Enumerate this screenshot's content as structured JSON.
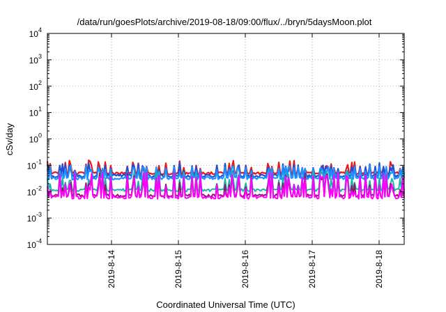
{
  "chart_data": {
    "type": "line",
    "title": "/data/run/goesPlots/archive/2019-08-18/09:00/flux/../bryn/5daysMoon.plot",
    "xlabel": "Coordinated Universal Time (UTC)",
    "ylabel": "cSv/day",
    "y_scale": "log",
    "ylim": [
      0.0001,
      10000
    ],
    "y_ticks": [
      {
        "exp": "4"
      },
      {
        "exp": "3"
      },
      {
        "exp": "2"
      },
      {
        "exp": "1"
      },
      {
        "exp": "0"
      },
      {
        "exp": "-1"
      },
      {
        "exp": "-2"
      },
      {
        "exp": "-3"
      },
      {
        "exp": "-4"
      }
    ],
    "y_tick_base": "10",
    "xlim": [
      "2019-08-13T01:00",
      "2019-08-18T09:00"
    ],
    "x_ticks": [
      "2019-8-14",
      "2019-8-15",
      "2019-8-16",
      "2019-8-17",
      "2019-8-18"
    ],
    "grid": true,
    "series": [
      {
        "color": "#e41a1c",
        "base": 0.052,
        "spike_max": 0.105,
        "spike_min": 0.04
      },
      {
        "color": "#1f4fd6",
        "base": 0.042,
        "spike_max": 0.1,
        "spike_min": 0.03
      },
      {
        "color": "#1e90ff",
        "base": 0.034,
        "spike_max": 0.09,
        "spike_min": 0.025
      },
      {
        "color": "#20b2aa",
        "base": 0.012,
        "spike_max": 0.06,
        "spike_min": 0.009
      },
      {
        "color": "#8b1a6b",
        "base": 0.0075,
        "spike_max": 0.05,
        "spike_min": 0.0055
      },
      {
        "color": "#ff00ff",
        "base": 0.0065,
        "spike_max": 0.055,
        "spike_min": 0.0045
      }
    ]
  }
}
